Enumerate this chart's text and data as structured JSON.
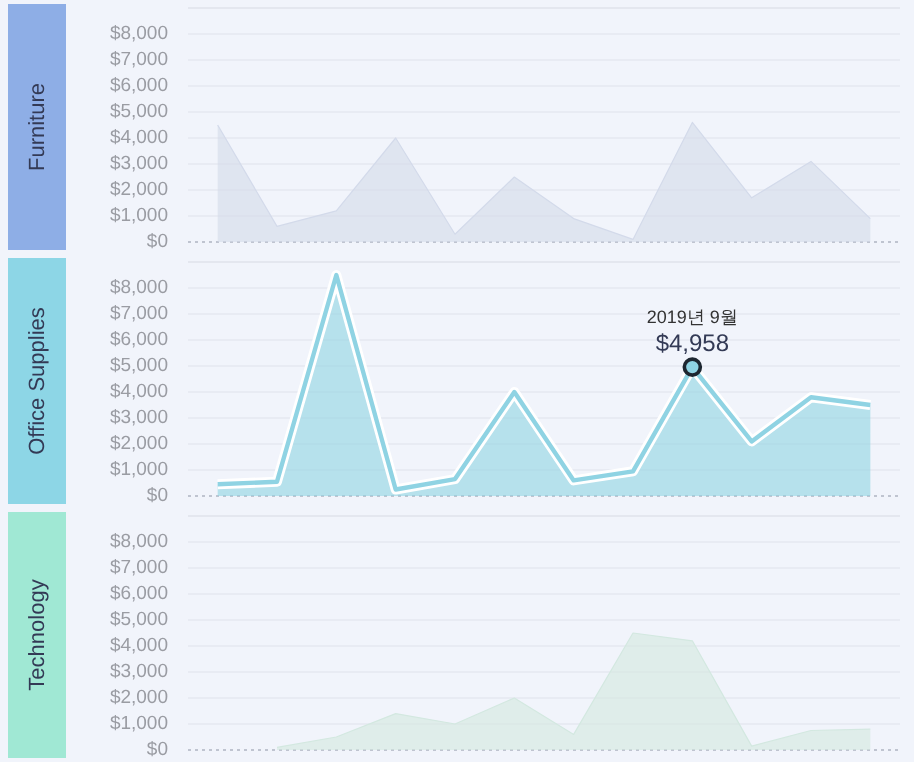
{
  "chart_data": [
    {
      "type": "area",
      "ylabel": "Furniture",
      "categories": [
        null,
        null,
        null,
        null,
        null,
        null,
        null,
        null,
        null,
        null,
        null,
        null
      ],
      "series": [
        {
          "color": "#d3daea",
          "values": [
            4500,
            600,
            1200,
            4000,
            300,
            2500,
            900,
            100,
            4600,
            1700,
            3100,
            900
          ]
        }
      ],
      "ylim": [
        0,
        9000
      ],
      "yticks": [
        {
          "value": 0,
          "label": "$0"
        },
        {
          "value": 1000,
          "label": "$1,000"
        },
        {
          "value": 2000,
          "label": "$2,000"
        },
        {
          "value": 3000,
          "label": "$3,000"
        },
        {
          "value": 4000,
          "label": "$4,000"
        },
        {
          "value": 5000,
          "label": "$5,000"
        },
        {
          "value": 6000,
          "label": "$6,000"
        },
        {
          "value": 7000,
          "label": "$7,000"
        },
        {
          "value": 8000,
          "label": "$8,000"
        }
      ],
      "grid": "y"
    },
    {
      "type": "area",
      "ylabel": "Office Supplies",
      "categories": [
        null,
        null,
        null,
        null,
        null,
        null,
        null,
        null,
        null,
        null,
        null,
        null
      ],
      "series": [
        {
          "color": "#8fd3e3",
          "values": [
            450,
            550,
            8500,
            250,
            650,
            4000,
            600,
            950,
            4958,
            2100,
            3800,
            3500
          ],
          "value_labels": [
            null,
            null,
            null,
            null,
            null,
            null,
            null,
            null,
            "$4,958",
            null,
            null,
            null
          ]
        }
      ],
      "annotations": [
        "2019년 9월"
      ],
      "ylim": [
        0,
        9000
      ],
      "yticks": [
        {
          "value": 0,
          "label": "$0"
        },
        {
          "value": 1000,
          "label": "$1,000"
        },
        {
          "value": 2000,
          "label": "$2,000"
        },
        {
          "value": 3000,
          "label": "$3,000"
        },
        {
          "value": 4000,
          "label": "$4,000"
        },
        {
          "value": 5000,
          "label": "$5,000"
        },
        {
          "value": 6000,
          "label": "$6,000"
        },
        {
          "value": 7000,
          "label": "$7,000"
        },
        {
          "value": 8000,
          "label": "$8,000"
        }
      ],
      "grid": "y"
    },
    {
      "type": "area",
      "ylabel": "Technology",
      "categories": [
        null,
        null,
        null,
        null,
        null,
        null,
        null,
        null,
        null,
        null,
        null,
        null
      ],
      "series": [
        {
          "color": "#d3e8e0",
          "values": [
            null,
            100,
            500,
            1400,
            1000,
            2000,
            600,
            4500,
            4200,
            150,
            750,
            800
          ]
        }
      ],
      "ylim": [
        0,
        9000
      ],
      "yticks": [
        {
          "value": 0,
          "label": "$0"
        },
        {
          "value": 1000,
          "label": "$1,000"
        },
        {
          "value": 2000,
          "label": "$2,000"
        },
        {
          "value": 3000,
          "label": "$3,000"
        },
        {
          "value": 4000,
          "label": "$4,000"
        },
        {
          "value": 5000,
          "label": "$5,000"
        },
        {
          "value": 6000,
          "label": "$6,000"
        },
        {
          "value": 7000,
          "label": "$7,000"
        },
        {
          "value": 8000,
          "label": "$8,000"
        }
      ],
      "grid": "y"
    }
  ]
}
